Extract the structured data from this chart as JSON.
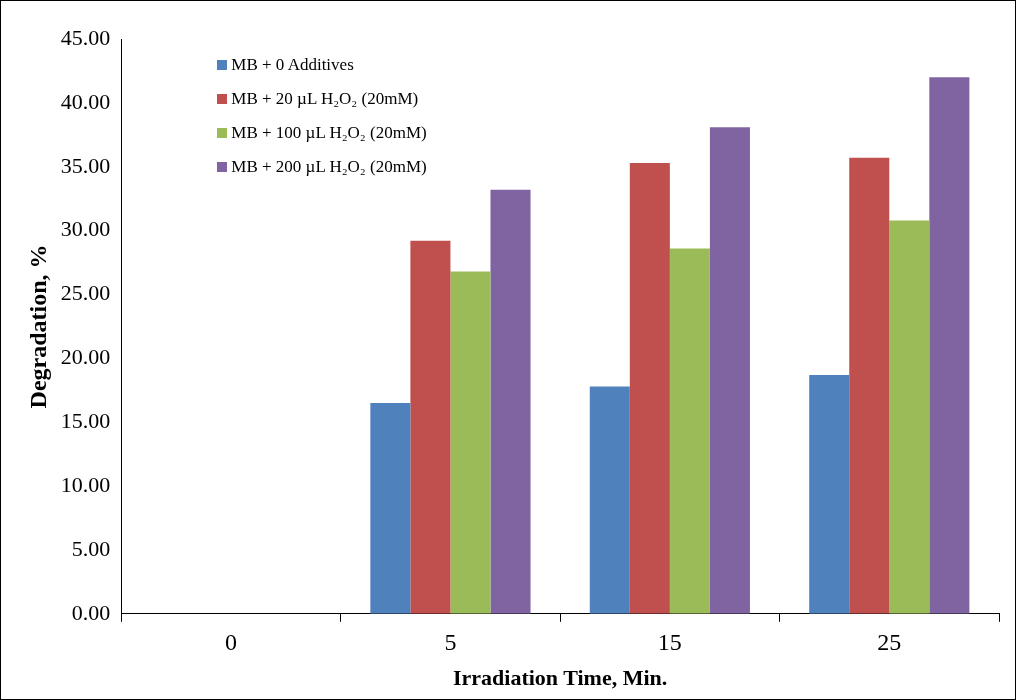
{
  "chart_data": {
    "type": "bar",
    "xlabel": "Irradiation Time, Min.",
    "ylabel": "Degradation, %",
    "categories": [
      "0",
      "5",
      "15",
      "25"
    ],
    "series": [
      {
        "name": "MB + 0 Additives",
        "color": "#4f81bd",
        "values": [
          0,
          16.5,
          17.8,
          18.7
        ]
      },
      {
        "name": "MB + 20 µL H₂O₂ (20mM)",
        "color": "#c0504d",
        "values": [
          0,
          29.2,
          35.3,
          35.7
        ]
      },
      {
        "name": "MB + 100 µL H₂O₂ (20mM)",
        "color": "#9bbb59",
        "values": [
          0,
          26.8,
          28.6,
          30.8
        ]
      },
      {
        "name": "MB + 200 µL H₂O₂ (20mM)",
        "color": "#8064a2",
        "values": [
          0,
          33.2,
          38.1,
          42.0
        ]
      }
    ],
    "ylim": [
      0,
      45
    ],
    "yticks": [
      {
        "value": 0,
        "label": "0.00"
      },
      {
        "value": 5,
        "label": "5.00"
      },
      {
        "value": 10,
        "label": "10.00"
      },
      {
        "value": 15,
        "label": "15.00"
      },
      {
        "value": 20,
        "label": "20.00"
      },
      {
        "value": 25,
        "label": "25.00"
      },
      {
        "value": 30,
        "label": "30.00"
      },
      {
        "value": 35,
        "label": "35.00"
      },
      {
        "value": 40,
        "label": "40.00"
      },
      {
        "value": 45,
        "label": "45.00"
      }
    ],
    "grid": false,
    "legend": "top left"
  }
}
